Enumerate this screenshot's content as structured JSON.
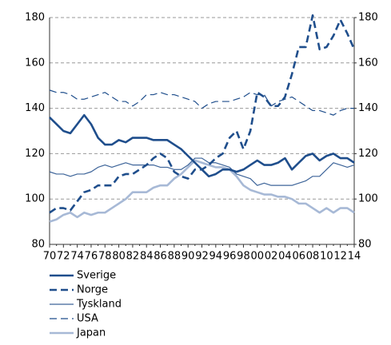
{
  "chart_data": {
    "type": "line",
    "categories": [
      "70",
      null,
      "72",
      null,
      "74",
      null,
      "76",
      null,
      "78",
      null,
      "80",
      null,
      "82",
      null,
      "84",
      null,
      "86",
      null,
      "88",
      null,
      "90",
      null,
      "92",
      null,
      "94",
      null,
      "96",
      null,
      "98",
      null,
      "00",
      null,
      "02",
      null,
      "04",
      null,
      "06",
      null,
      "08",
      null,
      "10",
      null,
      "12",
      null,
      "14"
    ],
    "ylim": [
      80,
      180
    ],
    "yticks": [
      80,
      100,
      120,
      140,
      160,
      180
    ],
    "y2lim": [
      80,
      180
    ],
    "y2ticks": [
      80,
      100,
      120,
      140,
      160,
      180
    ],
    "grid": true,
    "legend": "bottom",
    "series": [
      {
        "name": "Sverige",
        "color": "#1f4e8c",
        "width": 2.6,
        "dash": false,
        "values": [
          136,
          133,
          130,
          129,
          133,
          137,
          133,
          127,
          124,
          124,
          126,
          125,
          127,
          127,
          127,
          126,
          126,
          126,
          124,
          122,
          119,
          116,
          113,
          110,
          111,
          113,
          113,
          112,
          113,
          115,
          117,
          115,
          115,
          116,
          118,
          113,
          116,
          119,
          120,
          117,
          119,
          120,
          118,
          118,
          116
        ]
      },
      {
        "name": "Norge",
        "color": "#1f4e8c",
        "width": 2.6,
        "dash": true,
        "values": [
          94,
          96,
          96,
          95,
          99,
          103,
          104,
          106,
          106,
          106,
          110,
          111,
          111,
          113,
          115,
          118,
          120,
          118,
          112,
          110,
          109,
          113,
          113,
          115,
          118,
          120,
          127,
          130,
          122,
          130,
          147,
          145,
          141,
          141,
          145,
          155,
          167,
          167,
          181,
          166,
          167,
          172,
          179,
          173,
          166
        ]
      },
      {
        "name": "Tyskland",
        "color": "#3d6499",
        "width": 1.2,
        "dash": false,
        "values": [
          112,
          111,
          111,
          110,
          111,
          111,
          112,
          114,
          115,
          114,
          115,
          116,
          115,
          115,
          115,
          115,
          114,
          114,
          113,
          113,
          115,
          118,
          118,
          116,
          116,
          115,
          114,
          111,
          110,
          109,
          106,
          107,
          106,
          106,
          106,
          106,
          107,
          108,
          110,
          110,
          113,
          116,
          115,
          114,
          115
        ]
      },
      {
        "name": "USA",
        "color": "#1f4e8c",
        "width": 1.2,
        "dash": true,
        "values": [
          148,
          147,
          147,
          146,
          144,
          144,
          145,
          146,
          147,
          145,
          143,
          143,
          141,
          143,
          146,
          146,
          147,
          146,
          146,
          145,
          144,
          143,
          140,
          142,
          143,
          143,
          143,
          144,
          145,
          147,
          146,
          146,
          141,
          143,
          144,
          145,
          143,
          141,
          139,
          139,
          138,
          137,
          139,
          140,
          140
        ]
      },
      {
        "name": "Japan",
        "color": "#a7b9d6",
        "width": 2.6,
        "dash": false,
        "values": [
          90,
          91,
          93,
          94,
          92,
          94,
          93,
          94,
          94,
          96,
          98,
          100,
          103,
          103,
          103,
          105,
          106,
          106,
          109,
          111,
          114,
          117,
          116,
          115,
          114,
          114,
          113,
          110,
          106,
          104,
          103,
          102,
          102,
          101,
          101,
          100,
          98,
          98,
          96,
          94,
          96,
          94,
          96,
          96,
          94
        ]
      }
    ]
  }
}
